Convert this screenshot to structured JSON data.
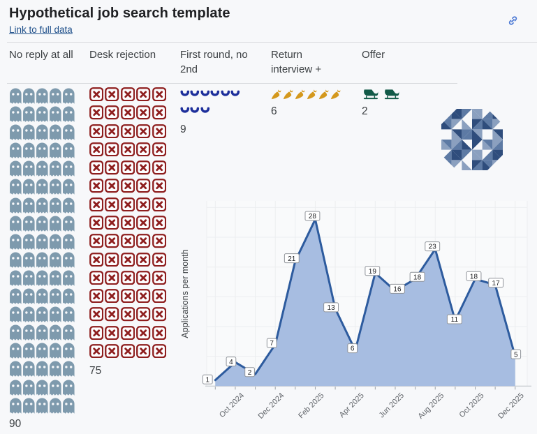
{
  "header": {
    "title": "Hypothetical job search template",
    "link_label": "Link to full data",
    "link_icon": "chain-link-icon",
    "link_icon_color": "#4a78d4"
  },
  "pictograph": {
    "columns": [
      {
        "label": "No reply at all",
        "count": 90,
        "per_row": 5,
        "icon": "ghost",
        "color": "#7e9aad"
      },
      {
        "label": "Desk rejection",
        "count": 75,
        "per_row": 5,
        "icon": "xbox",
        "color": "#8e1e1e"
      },
      {
        "label": "First round, no 2nd",
        "count": 9,
        "per_row": 6,
        "icon": "phone",
        "color": "#1d2f9b"
      },
      {
        "label": "Return interview +",
        "count": 6,
        "per_row": 6,
        "icon": "carrot",
        "color": "#d4981c"
      },
      {
        "label": "Offer",
        "count": 2,
        "per_row": 6,
        "icon": "sleigh",
        "color": "#125a48"
      }
    ]
  },
  "chart_data": {
    "type": "area",
    "title": "",
    "ylabel": "Applications per month",
    "x": [
      "Sep 2024",
      "Oct 2024",
      "Nov 2024",
      "Dec 2024",
      "Jan 2025",
      "Feb 2025",
      "Mar 2025",
      "Apr 2025",
      "May 2025",
      "Jun 2025",
      "Jul 2025",
      "Aug 2025",
      "Sep 2025",
      "Oct 2025",
      "Nov 2025",
      "Dec 2025"
    ],
    "values": [
      1,
      4,
      2,
      7,
      21,
      28,
      13,
      6,
      19,
      16,
      18,
      23,
      11,
      18,
      17,
      5
    ],
    "xtick_labels": [
      "Oct 2024",
      "Dec 2024",
      "Feb 2025",
      "Apr 2025",
      "Jun 2025",
      "Aug 2025",
      "Oct 2025",
      "Dec 2025"
    ],
    "ylim": [
      0,
      31
    ],
    "grid": true,
    "legend": "none",
    "data_labels": true,
    "line_color": "#2d5b9e",
    "fill_color": "#a7bde1",
    "label_box_bg": "#ffffff",
    "label_box_border": "#8f9399"
  }
}
